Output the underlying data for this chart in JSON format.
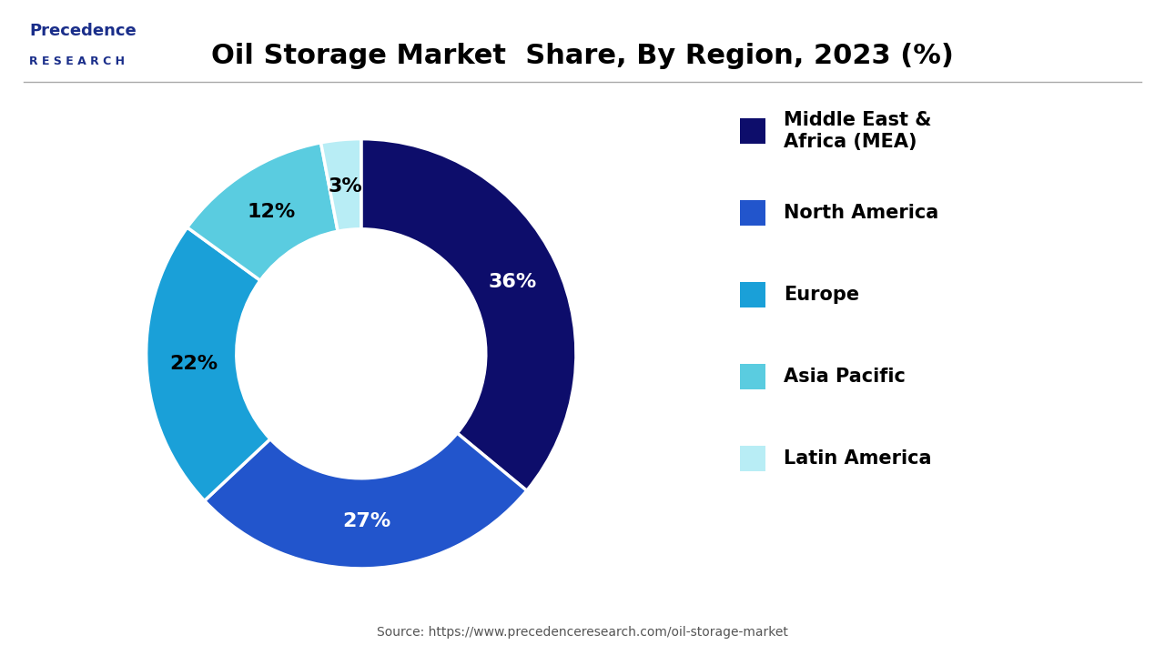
{
  "title": "Oil Storage Market  Share, By Region, 2023 (%)",
  "slices": [
    36,
    27,
    22,
    12,
    3
  ],
  "labels": [
    "Middle East &\nAfrica (MEA)",
    "North America",
    "Europe",
    "Asia Pacific",
    "Latin America"
  ],
  "pct_labels": [
    "36%",
    "27%",
    "22%",
    "12%",
    "3%"
  ],
  "colors": [
    "#0d0d6b",
    "#2255cc",
    "#1aa0d8",
    "#5acce0",
    "#b8edf5"
  ],
  "source": "Source: https://www.precedenceresearch.com/oil-storage-market",
  "background_color": "#ffffff",
  "title_fontsize": 22,
  "pct_fontsize": 16,
  "legend_fontsize": 15,
  "startangle": 90,
  "donut_width": 0.42
}
